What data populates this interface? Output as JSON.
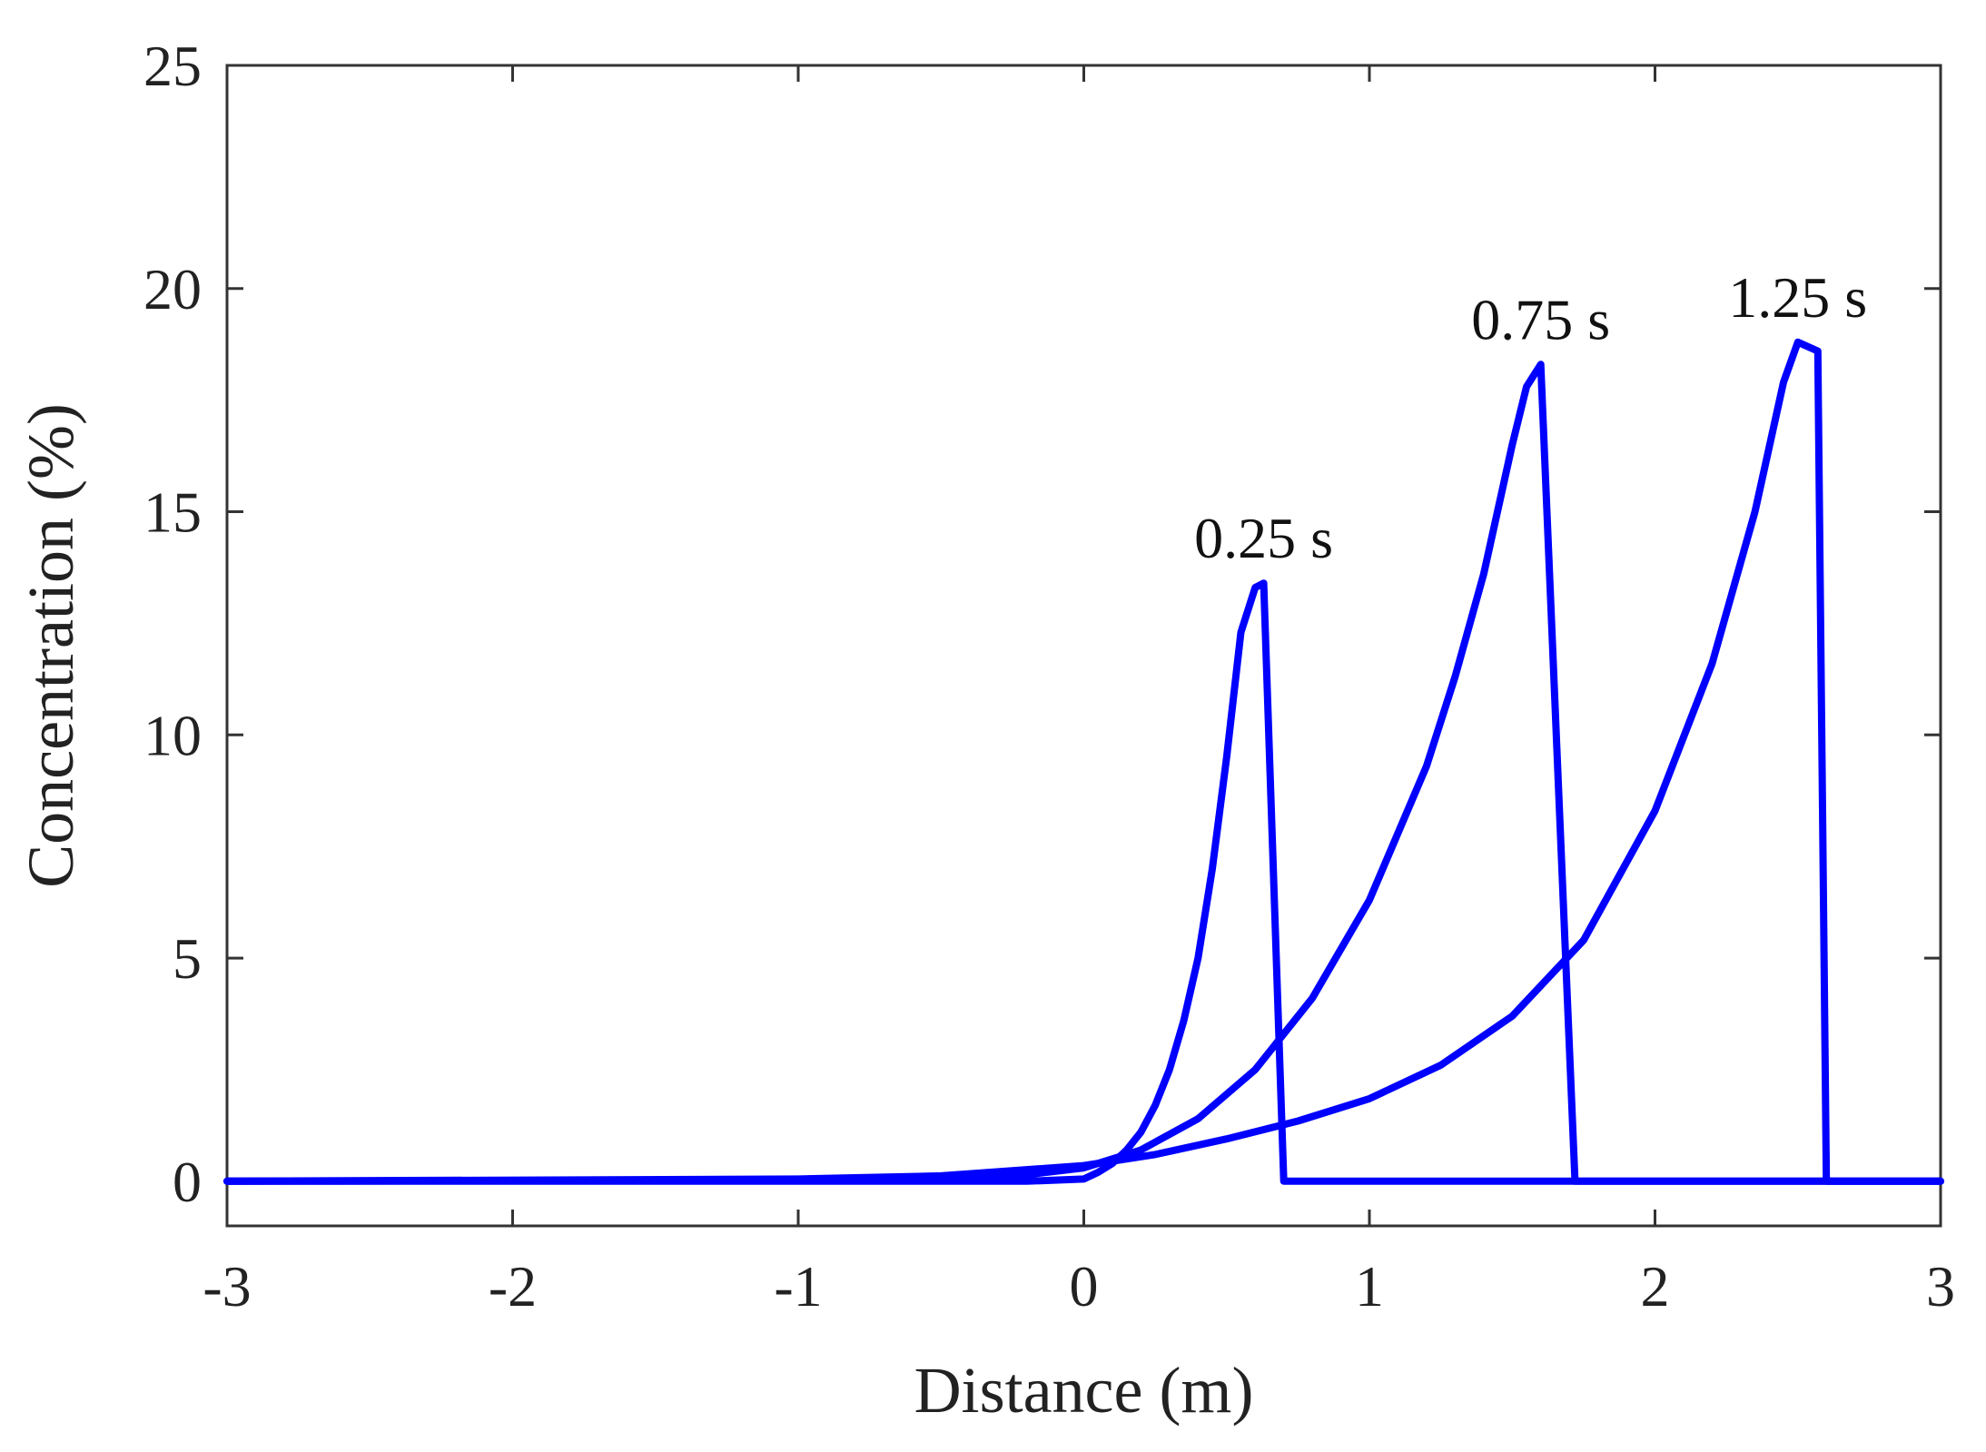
{
  "chart_data": {
    "type": "line",
    "title": "",
    "xlabel": "Distance (m)",
    "ylabel": "Concentration (%)",
    "xlim": [
      -3,
      3
    ],
    "ylim": [
      -1,
      25
    ],
    "xticks": [
      "-3",
      "-2",
      "-1",
      "0",
      "1",
      "2",
      "3"
    ],
    "yticks": [
      "0",
      "5",
      "10",
      "15",
      "20",
      "25"
    ],
    "grid": false,
    "legend": "none",
    "line_color": "#0000ff",
    "series": [
      {
        "label": "0.25 s",
        "x": [
          -3.0,
          -1.0,
          -0.5,
          -0.2,
          0.0,
          0.05,
          0.1,
          0.15,
          0.2,
          0.25,
          0.3,
          0.35,
          0.4,
          0.45,
          0.5,
          0.55,
          0.6,
          0.63,
          0.7,
          0.7,
          3.0
        ],
        "y": [
          0,
          0,
          0,
          0,
          0.05,
          0.2,
          0.4,
          0.7,
          1.1,
          1.7,
          2.5,
          3.6,
          5.0,
          7.0,
          9.5,
          12.3,
          13.3,
          13.4,
          0.0,
          0.0,
          0.0
        ]
      },
      {
        "label": "0.75 s",
        "x": [
          -3.0,
          -1.0,
          -0.5,
          -0.2,
          0.0,
          0.2,
          0.4,
          0.6,
          0.8,
          1.0,
          1.2,
          1.3,
          1.4,
          1.5,
          1.55,
          1.6,
          1.72,
          3.0
        ],
        "y": [
          0,
          0.02,
          0.08,
          0.15,
          0.3,
          0.7,
          1.4,
          2.5,
          4.1,
          6.3,
          9.3,
          11.3,
          13.6,
          16.5,
          17.8,
          18.3,
          0.0,
          0.0
        ]
      },
      {
        "label": "1.25 s",
        "x": [
          -3.0,
          -1.0,
          -0.5,
          0.0,
          0.25,
          0.5,
          0.75,
          1.0,
          1.25,
          1.5,
          1.75,
          2.0,
          2.2,
          2.35,
          2.45,
          2.5,
          2.57,
          2.6,
          2.62,
          3.0
        ],
        "y": [
          0,
          0.05,
          0.12,
          0.35,
          0.6,
          0.95,
          1.35,
          1.85,
          2.6,
          3.7,
          5.4,
          8.3,
          11.6,
          15.0,
          17.9,
          18.8,
          18.6,
          0.0,
          0.0,
          0.0
        ]
      }
    ]
  }
}
